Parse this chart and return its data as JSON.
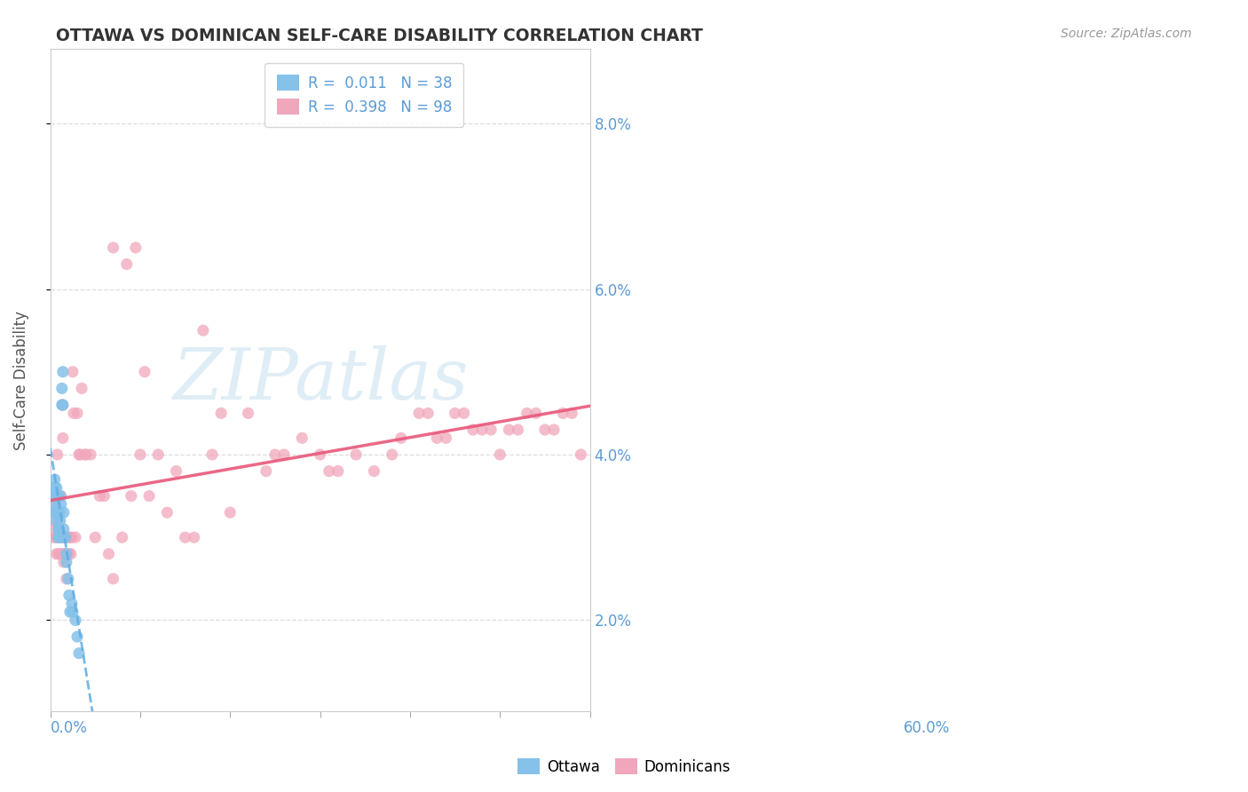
{
  "title": "OTTAWA VS DOMINICAN SELF-CARE DISABILITY CORRELATION CHART",
  "source": "Source: ZipAtlas.com",
  "ylabel": "Self-Care Disability",
  "xlim": [
    0.0,
    0.6
  ],
  "ylim": [
    0.009,
    0.089
  ],
  "ottawa_color": "#85C1E9",
  "dominican_color": "#F1A7BB",
  "ottawa_line_color": "#5DADE2",
  "dominican_line_color": "#E8587A",
  "watermark_color": "#D0E8F5",
  "legend_r1": "R =  0.011   N = 38",
  "legend_r2": "R =  0.398   N = 98",
  "ottawa_x": [
    0.003,
    0.004,
    0.005,
    0.005,
    0.006,
    0.006,
    0.007,
    0.007,
    0.007,
    0.008,
    0.008,
    0.009,
    0.009,
    0.01,
    0.01,
    0.01,
    0.011,
    0.011,
    0.012,
    0.012,
    0.013,
    0.013,
    0.014,
    0.014,
    0.015,
    0.015,
    0.016,
    0.017,
    0.018,
    0.018,
    0.02,
    0.021,
    0.022,
    0.024,
    0.025,
    0.028,
    0.03,
    0.032
  ],
  "ottawa_y": [
    0.035,
    0.033,
    0.037,
    0.036,
    0.035,
    0.034,
    0.036,
    0.033,
    0.032,
    0.035,
    0.033,
    0.031,
    0.03,
    0.033,
    0.031,
    0.03,
    0.035,
    0.032,
    0.034,
    0.03,
    0.048,
    0.046,
    0.05,
    0.046,
    0.033,
    0.031,
    0.03,
    0.03,
    0.028,
    0.027,
    0.025,
    0.023,
    0.021,
    0.022,
    0.021,
    0.02,
    0.018,
    0.016
  ],
  "dominican_x": [
    0.003,
    0.004,
    0.005,
    0.005,
    0.006,
    0.006,
    0.007,
    0.007,
    0.008,
    0.008,
    0.009,
    0.009,
    0.01,
    0.01,
    0.011,
    0.011,
    0.012,
    0.012,
    0.013,
    0.013,
    0.014,
    0.014,
    0.015,
    0.015,
    0.016,
    0.016,
    0.017,
    0.018,
    0.018,
    0.019,
    0.02,
    0.021,
    0.022,
    0.023,
    0.024,
    0.025,
    0.026,
    0.028,
    0.03,
    0.032,
    0.033,
    0.035,
    0.038,
    0.04,
    0.045,
    0.05,
    0.055,
    0.06,
    0.065,
    0.07,
    0.08,
    0.09,
    0.1,
    0.11,
    0.12,
    0.14,
    0.16,
    0.18,
    0.2,
    0.22,
    0.24,
    0.26,
    0.28,
    0.3,
    0.32,
    0.34,
    0.36,
    0.38,
    0.39,
    0.41,
    0.42,
    0.43,
    0.44,
    0.45,
    0.46,
    0.47,
    0.48,
    0.49,
    0.5,
    0.51,
    0.52,
    0.53,
    0.54,
    0.55,
    0.56,
    0.57,
    0.58,
    0.59,
    0.07,
    0.085,
    0.095,
    0.105,
    0.13,
    0.15,
    0.17,
    0.19,
    0.25,
    0.31
  ],
  "dominican_y": [
    0.032,
    0.03,
    0.034,
    0.031,
    0.033,
    0.03,
    0.03,
    0.028,
    0.04,
    0.035,
    0.03,
    0.028,
    0.033,
    0.03,
    0.03,
    0.028,
    0.035,
    0.03,
    0.03,
    0.028,
    0.046,
    0.042,
    0.03,
    0.027,
    0.03,
    0.028,
    0.028,
    0.025,
    0.03,
    0.028,
    0.03,
    0.028,
    0.03,
    0.028,
    0.03,
    0.05,
    0.045,
    0.03,
    0.045,
    0.04,
    0.04,
    0.048,
    0.04,
    0.04,
    0.04,
    0.03,
    0.035,
    0.035,
    0.028,
    0.025,
    0.03,
    0.035,
    0.04,
    0.035,
    0.04,
    0.038,
    0.03,
    0.04,
    0.033,
    0.045,
    0.038,
    0.04,
    0.042,
    0.04,
    0.038,
    0.04,
    0.038,
    0.04,
    0.042,
    0.045,
    0.045,
    0.042,
    0.042,
    0.045,
    0.045,
    0.043,
    0.043,
    0.043,
    0.04,
    0.043,
    0.043,
    0.045,
    0.045,
    0.043,
    0.043,
    0.045,
    0.045,
    0.04,
    0.065,
    0.063,
    0.065,
    0.05,
    0.033,
    0.03,
    0.055,
    0.045,
    0.04,
    0.038
  ]
}
